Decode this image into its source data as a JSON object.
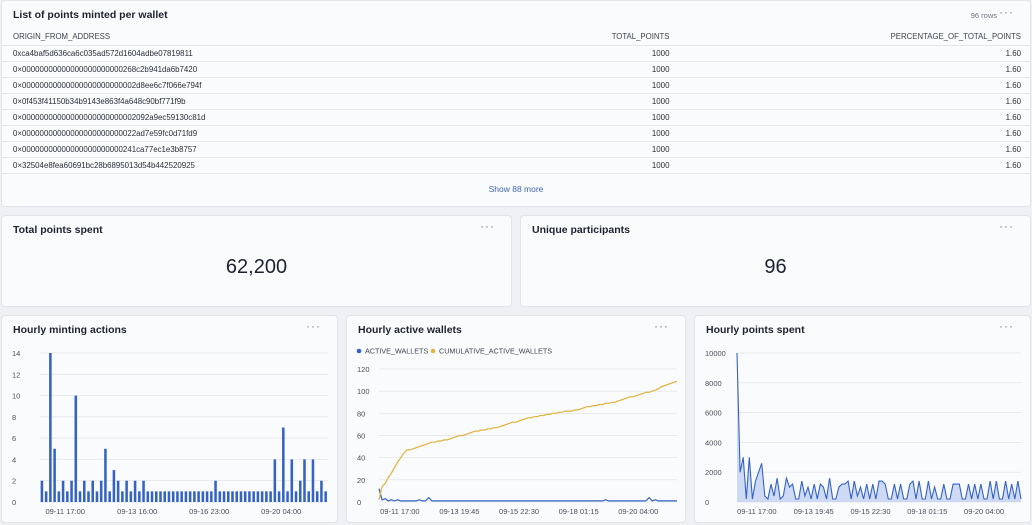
{
  "table_card": {
    "title": "List of points minted per wallet",
    "row_count": "96 rows",
    "more_icon": "ellipsis-icon",
    "columns": [
      "ORIGIN_FROM_ADDRESS",
      "TOTAL_POINTS",
      "PERCENTAGE_OF_TOTAL_POINTS"
    ],
    "rows": [
      [
        "0xca4baf5d636ca6c035ad572d1604adbe07819811",
        "1000",
        "1.60"
      ],
      [
        "0×00000000000000000000000268c2b941da6b7420",
        "1000",
        "1.60"
      ],
      [
        "0×00000000000000000000000002d8ee6c7f066e794f",
        "1000",
        "1.60"
      ],
      [
        "0×0f453f41150b34b9143e863f4a648c90bf771f9b",
        "1000",
        "1.60"
      ],
      [
        "0×00000000000000000000000002092a9ec59130c81d",
        "1000",
        "1.60"
      ],
      [
        "0×00000000000000000000000022ad7e59fc0d71fd9",
        "1000",
        "1.60"
      ],
      [
        "0×00000000000000000000000241ca77ec1e3b8757",
        "1000",
        "1.60"
      ],
      [
        "0×32504e8fea60691bc28b6895013d54b442520925",
        "1000",
        "1.60"
      ]
    ],
    "show_more": "Show 88 more"
  },
  "kpis": [
    {
      "title": "Total points spent",
      "value": "62,200"
    },
    {
      "title": "Unique participants",
      "value": "96"
    }
  ],
  "colors": {
    "blue": "#3563c4",
    "gold": "#e0b23e",
    "fill": "#c5d4f1"
  },
  "chart_data": [
    {
      "type": "bar",
      "title": "Hourly minting actions",
      "ylim": [
        0,
        14
      ],
      "yticks": [
        0,
        2,
        4,
        6,
        8,
        10,
        12,
        14
      ],
      "xtick_labels": [
        "09-11 17:00",
        "09-13 16:00",
        "09-16 23:00",
        "09-20 04:00"
      ],
      "values": [
        2,
        1,
        14,
        5,
        1,
        2,
        1,
        2,
        10,
        1,
        2,
        1,
        2,
        1,
        2,
        5,
        1,
        3,
        2,
        1,
        2,
        1,
        2,
        1,
        2,
        1,
        1,
        1,
        1,
        1,
        1,
        1,
        1,
        1,
        1,
        1,
        1,
        1,
        1,
        1,
        1,
        2,
        1,
        1,
        1,
        1,
        1,
        1,
        1,
        1,
        1,
        1,
        1,
        1,
        1,
        4,
        1,
        7,
        1,
        4,
        1,
        2,
        4,
        1,
        4,
        1,
        2,
        1
      ]
    },
    {
      "type": "line",
      "title": "Hourly active wallets",
      "ylim": [
        0,
        120
      ],
      "yticks": [
        0,
        20,
        40,
        60,
        80,
        100,
        120
      ],
      "xtick_labels": [
        "09-11 17:00",
        "09-13 19:45",
        "09-15 22:30",
        "09-18 01:15",
        "09-20 04:00"
      ],
      "series": [
        {
          "name": "ACTIVE_WALLETS",
          "values": [
            12,
            2,
            3,
            1,
            2,
            1,
            2,
            1,
            1,
            1,
            1,
            1,
            1,
            2,
            1,
            1,
            4,
            1,
            1,
            1,
            1,
            1,
            1,
            1,
            1,
            1,
            1,
            1,
            1,
            1,
            1,
            1,
            1,
            1,
            1,
            1,
            1,
            1,
            1,
            1,
            1,
            1,
            1,
            1,
            1,
            1,
            1,
            1,
            1,
            1,
            1,
            1,
            1,
            1,
            1,
            1,
            1,
            1,
            1,
            1,
            1,
            1,
            1,
            1,
            1,
            1,
            1,
            1,
            1,
            1,
            1,
            1,
            1,
            2,
            1,
            1,
            1,
            1,
            1,
            1,
            1,
            1,
            1,
            1,
            1,
            1,
            1,
            4,
            1,
            2,
            1,
            1,
            1,
            1,
            1,
            1,
            1
          ]
        },
        {
          "name": "CUMULATIVE_ACTIVE_WALLETS",
          "values": [
            2,
            14,
            17,
            22,
            26,
            31,
            36,
            40,
            44,
            47,
            47,
            48,
            49,
            50,
            51,
            52,
            53,
            54,
            54,
            55,
            55,
            56,
            56,
            57,
            58,
            59,
            60,
            60,
            61,
            62,
            63,
            64,
            64,
            65,
            65,
            66,
            66,
            67,
            67,
            68,
            69,
            70,
            71,
            72,
            72,
            73,
            74,
            75,
            76,
            76,
            77,
            77,
            78,
            78,
            79,
            79,
            80,
            80,
            81,
            81,
            82,
            82,
            82,
            83,
            83,
            84,
            85,
            86,
            86,
            87,
            87,
            88,
            88,
            89,
            89,
            90,
            90,
            91,
            92,
            93,
            94,
            95,
            95,
            96,
            97,
            98,
            99,
            99,
            100,
            101,
            102,
            104,
            105,
            106,
            107,
            108,
            109
          ]
        }
      ]
    },
    {
      "type": "area",
      "title": "Hourly points spent",
      "ylim": [
        0,
        10000
      ],
      "yticks": [
        0,
        2000,
        4000,
        6000,
        8000,
        10000
      ],
      "xtick_labels": [
        "09-11 17:00",
        "09-13 19:45",
        "09-15 22:30",
        "09-18 01:15",
        "09-20 04:00"
      ],
      "values": [
        10000,
        2000,
        3000,
        200,
        3000,
        200,
        1400,
        2000,
        2600,
        400,
        200,
        1200,
        400,
        1600,
        200,
        400,
        1600,
        1000,
        1200,
        200,
        200,
        1400,
        400,
        1000,
        200,
        1200,
        200,
        1200,
        1000,
        200,
        1600,
        200,
        200,
        1000,
        1200,
        1200,
        1400,
        200,
        1400,
        400,
        1000,
        200,
        1200,
        200,
        1200,
        200,
        1400,
        1400,
        1200,
        200,
        200,
        1200,
        200,
        1200,
        200,
        200,
        1200,
        1400,
        200,
        1400,
        200,
        200,
        1400,
        200,
        1000,
        200,
        200,
        1200,
        200,
        200,
        1200,
        1200,
        1200,
        200,
        200,
        1200,
        200,
        1200,
        200,
        1200,
        200,
        200,
        1400,
        200,
        1400,
        200,
        200,
        1400,
        200,
        1200,
        200,
        1400,
        200
      ]
    }
  ]
}
